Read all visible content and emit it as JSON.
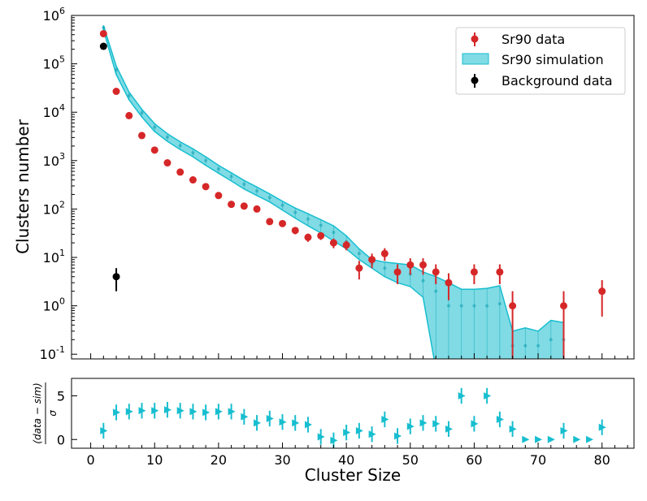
{
  "chart_data": [
    {
      "type": "scatter",
      "panel": "top",
      "xlabel": "",
      "ylabel": "Clusters number",
      "yscale": "log",
      "xlim": [
        -3,
        85
      ],
      "ylim": [
        0.08,
        1000000
      ],
      "ytick_labels": [
        "10^-1",
        "10^0",
        "10^1",
        "10^2",
        "10^3",
        "10^4",
        "10^5",
        "10^6"
      ],
      "legend": {
        "position": "top-right",
        "entries": [
          "Sr90 data",
          "Sr90 simulation",
          "Background data"
        ]
      },
      "series": [
        {
          "name": "Sr90 data",
          "kind": "errorbar",
          "color": "#d62728",
          "x": [
            2,
            4,
            6,
            8,
            10,
            12,
            14,
            16,
            18,
            20,
            22,
            24,
            26,
            28,
            30,
            32,
            34,
            36,
            38,
            40,
            42,
            44,
            46,
            48,
            50,
            52,
            54,
            56,
            60,
            64,
            66,
            74,
            80
          ],
          "y": [
            420000,
            27000,
            8500,
            3300,
            1650,
            900,
            580,
            400,
            290,
            190,
            125,
            115,
            100,
            55,
            50,
            36,
            26,
            28,
            20,
            18,
            6,
            9,
            12,
            5,
            7,
            7,
            5,
            3,
            5,
            5,
            1,
            1,
            2
          ],
          "yerr_low": [
            650,
            165,
            92,
            57,
            41,
            30,
            24,
            20,
            17,
            14,
            11,
            11,
            10,
            7,
            7,
            6,
            5,
            5,
            4.5,
            4,
            2.5,
            3,
            3.5,
            2.2,
            2.6,
            2.6,
            2.2,
            1.7,
            2.2,
            2.2,
            0.92,
            0.92,
            1.4
          ],
          "yerr_high": [
            650,
            165,
            92,
            57,
            41,
            30,
            24,
            20,
            17,
            14,
            11,
            11,
            10,
            7,
            7,
            6,
            5,
            5,
            4.5,
            4,
            2.5,
            3,
            3.5,
            2.2,
            2.6,
            2.6,
            2.2,
            1.7,
            2.2,
            2.2,
            1,
            1,
            1.4
          ]
        },
        {
          "name": "Sr90 simulation",
          "kind": "band",
          "color": "#17becf",
          "x": [
            2,
            4,
            6,
            8,
            10,
            12,
            14,
            16,
            18,
            20,
            22,
            24,
            26,
            28,
            30,
            32,
            34,
            36,
            38,
            40,
            42,
            44,
            46,
            48,
            50,
            52,
            54,
            56,
            58,
            60,
            62,
            64,
            66,
            68,
            70,
            72,
            74
          ],
          "y_low": [
            500000,
            60000,
            18000,
            8000,
            4000,
            2500,
            1700,
            1200,
            800,
            550,
            380,
            260,
            190,
            140,
            95,
            65,
            45,
            32,
            22,
            15,
            9,
            6,
            4,
            3,
            2.5,
            1.5,
            0.05,
            0.05,
            0.05,
            0.05,
            0.05,
            0.05,
            0.05,
            0.05,
            0.05,
            0.05,
            0.05
          ],
          "y_high": [
            620000,
            90000,
            26000,
            11500,
            5800,
            3600,
            2450,
            1750,
            1200,
            800,
            560,
            390,
            285,
            205,
            145,
            105,
            80,
            60,
            45,
            28,
            15,
            9,
            8,
            7.5,
            7,
            5,
            4,
            3,
            2.2,
            2.2,
            2.3,
            2.6,
            0.3,
            0.35,
            0.3,
            0.5,
            0.45
          ],
          "y_mid": [
            560000,
            75000,
            22000,
            9700,
            4900,
            3050,
            2050,
            1450,
            1000,
            670,
            470,
            325,
            235,
            172,
            120,
            85,
            62,
            46,
            33,
            21,
            12,
            7.5,
            6,
            5,
            4.5,
            3.3,
            2,
            1,
            1,
            1,
            1,
            1.1,
            0.15,
            0.15,
            0.15,
            0.2,
            0.2
          ]
        },
        {
          "name": "Background data",
          "kind": "errorbar",
          "color": "#000000",
          "x": [
            2,
            4
          ],
          "y": [
            230000,
            4
          ],
          "yerr_low": [
            480,
            2
          ],
          "yerr_high": [
            480,
            2
          ]
        }
      ]
    },
    {
      "type": "scatter",
      "panel": "bottom",
      "xlabel": "Cluster Size",
      "ylabel": "(data − sim) / σ",
      "ylabel_parts": {
        "numerator": "(data − sim)",
        "denominator": "σ"
      },
      "xlim": [
        -3,
        85
      ],
      "ylim": [
        -1,
        7
      ],
      "xtick_labels": [
        "0",
        "10",
        "20",
        "30",
        "40",
        "50",
        "60",
        "70",
        "80"
      ],
      "ytick_labels": [
        "0",
        "5"
      ],
      "series": [
        {
          "name": "pull",
          "color": "#17becf",
          "marker": "triangle-right",
          "x": [
            2,
            4,
            6,
            8,
            10,
            12,
            14,
            16,
            18,
            20,
            22,
            24,
            26,
            28,
            30,
            32,
            34,
            36,
            38,
            40,
            42,
            44,
            46,
            48,
            50,
            52,
            54,
            56,
            58,
            60,
            62,
            64,
            66,
            68,
            70,
            72,
            74,
            76,
            78,
            80
          ],
          "y": [
            1,
            3.1,
            3.2,
            3.3,
            3.3,
            3.4,
            3.3,
            3.2,
            3.1,
            3.2,
            3.2,
            2.6,
            1.9,
            2.4,
            2.0,
            1.9,
            1.7,
            0.3,
            -0.1,
            0.8,
            1.0,
            0.6,
            2.3,
            0.4,
            1.5,
            1.9,
            1.8,
            1.2,
            5.0,
            1.8,
            5.0,
            2.3,
            1.2,
            0.0,
            0.0,
            0.0,
            1.0,
            0.0,
            0.0,
            1.4
          ],
          "err": [
            0.9,
            0.9,
            0.9,
            0.9,
            0.9,
            0.9,
            0.9,
            0.9,
            0.9,
            0.9,
            0.9,
            0.9,
            0.9,
            0.9,
            0.9,
            0.9,
            0.9,
            0.9,
            0.9,
            0.9,
            0.9,
            0.9,
            0.9,
            0.9,
            0.9,
            0.9,
            0.9,
            0.9,
            0.9,
            0.9,
            0.9,
            0.9,
            0.9,
            0,
            0,
            0,
            0.9,
            0,
            0,
            0.9
          ]
        }
      ]
    }
  ]
}
